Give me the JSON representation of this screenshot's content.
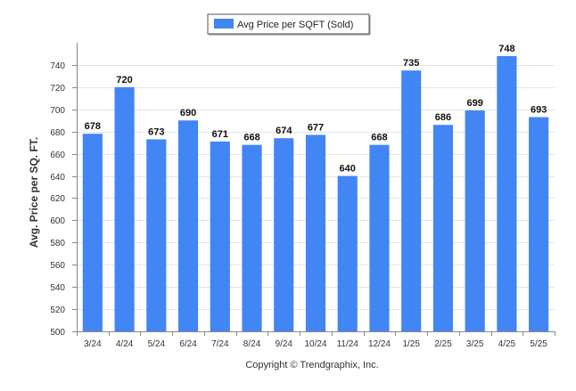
{
  "chart_data": {
    "type": "bar",
    "legend_label": "Avg Price per SQFT (Sold)",
    "legend_position": "top-center",
    "ylabel": "Avg. Price per SQ. FT.",
    "xlabel": "",
    "ylim": [
      500,
      760
    ],
    "yticks": [
      500,
      520,
      540,
      560,
      580,
      600,
      620,
      640,
      660,
      680,
      700,
      720,
      740
    ],
    "grid": true,
    "categories": [
      "3/24",
      "4/24",
      "5/24",
      "6/24",
      "7/24",
      "8/24",
      "9/24",
      "10/24",
      "11/24",
      "12/24",
      "1/25",
      "2/25",
      "3/25",
      "4/25",
      "5/25"
    ],
    "series": [
      {
        "name": "Avg Price per SQFT (Sold)",
        "values": [
          678,
          720,
          673,
          690,
          671,
          668,
          674,
          677,
          640,
          668,
          735,
          686,
          699,
          748,
          693
        ]
      }
    ],
    "bar_color": "#4285f4",
    "copyright": "Copyright © Trendgraphix, Inc."
  }
}
